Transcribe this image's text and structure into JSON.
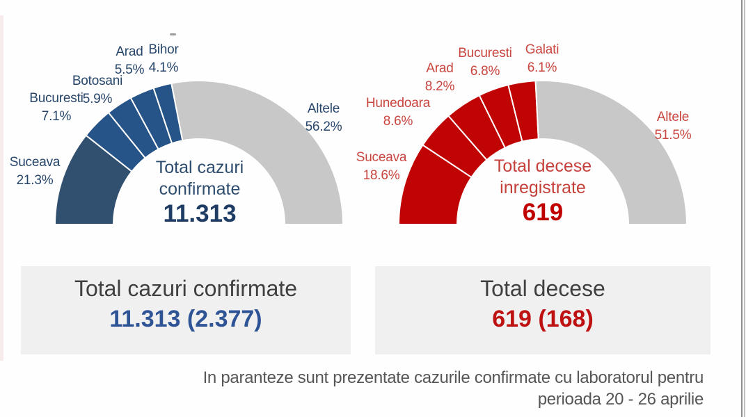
{
  "chart_data": [
    {
      "type": "pie",
      "variant": "half-donut",
      "center_title_lines": [
        "Total cazuri",
        "confirmate"
      ],
      "center_total": "11.313",
      "categories": [
        "Suceava",
        "Bucuresti",
        "Botosani",
        "Arad",
        "Bihor",
        "Altele"
      ],
      "values": [
        21.3,
        7.1,
        5.9,
        5.5,
        4.1,
        56.2
      ],
      "pct_labels": [
        "21.3%",
        "7.1%",
        "5.9%",
        "5.5%",
        "4.1%",
        "56.2%"
      ],
      "slice_colors": [
        "#31506f",
        "#265488",
        "#265488",
        "#265488",
        "#265488",
        "#c8c8c8"
      ],
      "label_color": "#27466a",
      "title_color": "#2e4d6e",
      "total_color": "#1e3c64",
      "start_angle_deg": 180,
      "end_angle_deg": 0,
      "legend_position": "labels-around-arc"
    },
    {
      "type": "pie",
      "variant": "half-donut",
      "center_title_lines": [
        "Total decese",
        "inregistrate"
      ],
      "center_total": "619",
      "categories": [
        "Suceava",
        "Hunedoara",
        "Arad",
        "Bucuresti",
        "Galati",
        "Altele"
      ],
      "values": [
        18.6,
        8.6,
        8.2,
        6.8,
        6.1,
        51.5
      ],
      "pct_labels": [
        "18.6%",
        "8.6%",
        "8.2%",
        "6.8%",
        "6.1%",
        "51.5%"
      ],
      "slice_colors": [
        "#c00404",
        "#c00404",
        "#c00404",
        "#c00404",
        "#c00404",
        "#c8c8c8"
      ],
      "label_color": "#c9453f",
      "title_color": "#c5403a",
      "total_color": "#c00000",
      "start_angle_deg": 180,
      "end_angle_deg": 0,
      "legend_position": "labels-around-arc"
    }
  ],
  "summary_cards": [
    {
      "title": "Total cazuri confirmate",
      "value": "11.313 (2.377)",
      "value_color": "#2e5496"
    },
    {
      "title": "Total decese",
      "value": "619 (168)",
      "value_color": "#be1212"
    }
  ],
  "footer": {
    "line1": "In paranteze sunt prezentate cazurile confirmate cu laboratorul pentru",
    "line2": "perioada 20 - 26 aprilie"
  }
}
